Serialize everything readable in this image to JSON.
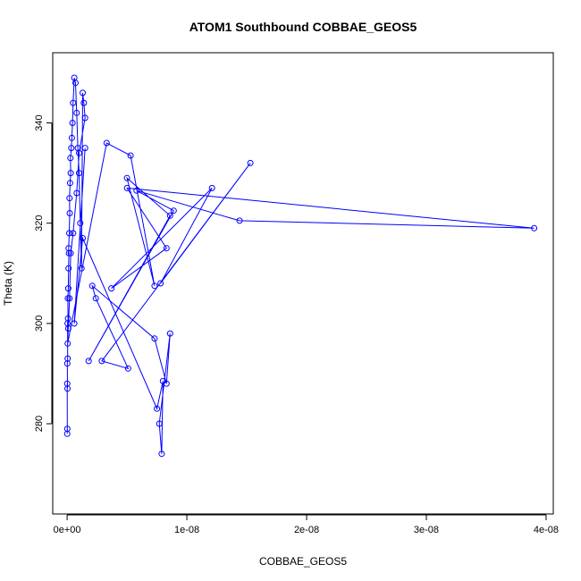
{
  "chart_data": {
    "type": "line",
    "title": "ATOM1 Southbound COBBAE_GEOS5",
    "xlabel": "COBBAE_GEOS5",
    "ylabel": "Theta (K)",
    "xlim": [
      -1.2e-09,
      4.06e-08
    ],
    "ylim": [
      262,
      354
    ],
    "x_ticks": [
      0,
      1e-08,
      2e-08,
      3e-08,
      4e-08
    ],
    "x_tick_labels": [
      "0e+00",
      "1e-08",
      "2e-08",
      "3e-08",
      "4e-08"
    ],
    "y_ticks": [
      280,
      300,
      320,
      340
    ],
    "y_tick_labels": [
      "280",
      "300",
      "320",
      "340"
    ],
    "grid": false,
    "legend": "none",
    "marker": "open-circle",
    "series": [
      {
        "color": "#0000ff",
        "x": [
          1e-11,
          2e-11,
          1e-11,
          3e-11,
          2e-11,
          5e-11,
          4e-11,
          8e-11,
          6e-11,
          1e-10,
          1.2e-10,
          1.5e-10,
          1.3e-10,
          1.8e-10,
          2.2e-10,
          2e-10,
          2.5e-10,
          3e-10,
          2.8e-10,
          3.5e-10,
          4e-10,
          4.5e-10,
          5e-10,
          6e-10,
          7e-10,
          8e-10,
          9e-10,
          1e-09,
          1.1e-09,
          1.2e-09,
          1.3e-09,
          1.4e-09,
          1.5e-09,
          1e-09,
          8e-10,
          5e-10,
          3e-10,
          2e-10,
          1e-10,
          5e-11,
          3.3e-09,
          5.3e-09,
          7.3e-09,
          5e-09,
          8.6e-09,
          1.8e-09,
          8.9e-09,
          5.8e-09,
          1.44e-08,
          3.9e-08,
          5e-09,
          8.3e-09,
          3.7e-09,
          1.21e-08,
          7.8e-09,
          1.53e-08,
          2.9e-09,
          5.1e-09,
          2.4e-09,
          2.1e-09,
          7.3e-09,
          8.3e-09,
          8.6e-09,
          7.7e-09,
          7.9e-09,
          8e-09,
          7.5e-09,
          1.3e-09,
          6e-10,
          1.5e-09
        ],
        "y": [
          278,
          279,
          288,
          287,
          292,
          293,
          300,
          301,
          305,
          307,
          311,
          314,
          315,
          318,
          322,
          325,
          328,
          330,
          333,
          335,
          337,
          340,
          344,
          349,
          348,
          342,
          335,
          330,
          320,
          311,
          346,
          344,
          341,
          334,
          326,
          318,
          314,
          305,
          299,
          296,
          336,
          333.5,
          307.5,
          329,
          321.5,
          292.5,
          322.5,
          326.5,
          320.5,
          319,
          327,
          315,
          307,
          327,
          308,
          332,
          292.5,
          291,
          305,
          307.5,
          297,
          288,
          298,
          280,
          274,
          288.5,
          283,
          317,
          300,
          335
        ]
      }
    ]
  }
}
